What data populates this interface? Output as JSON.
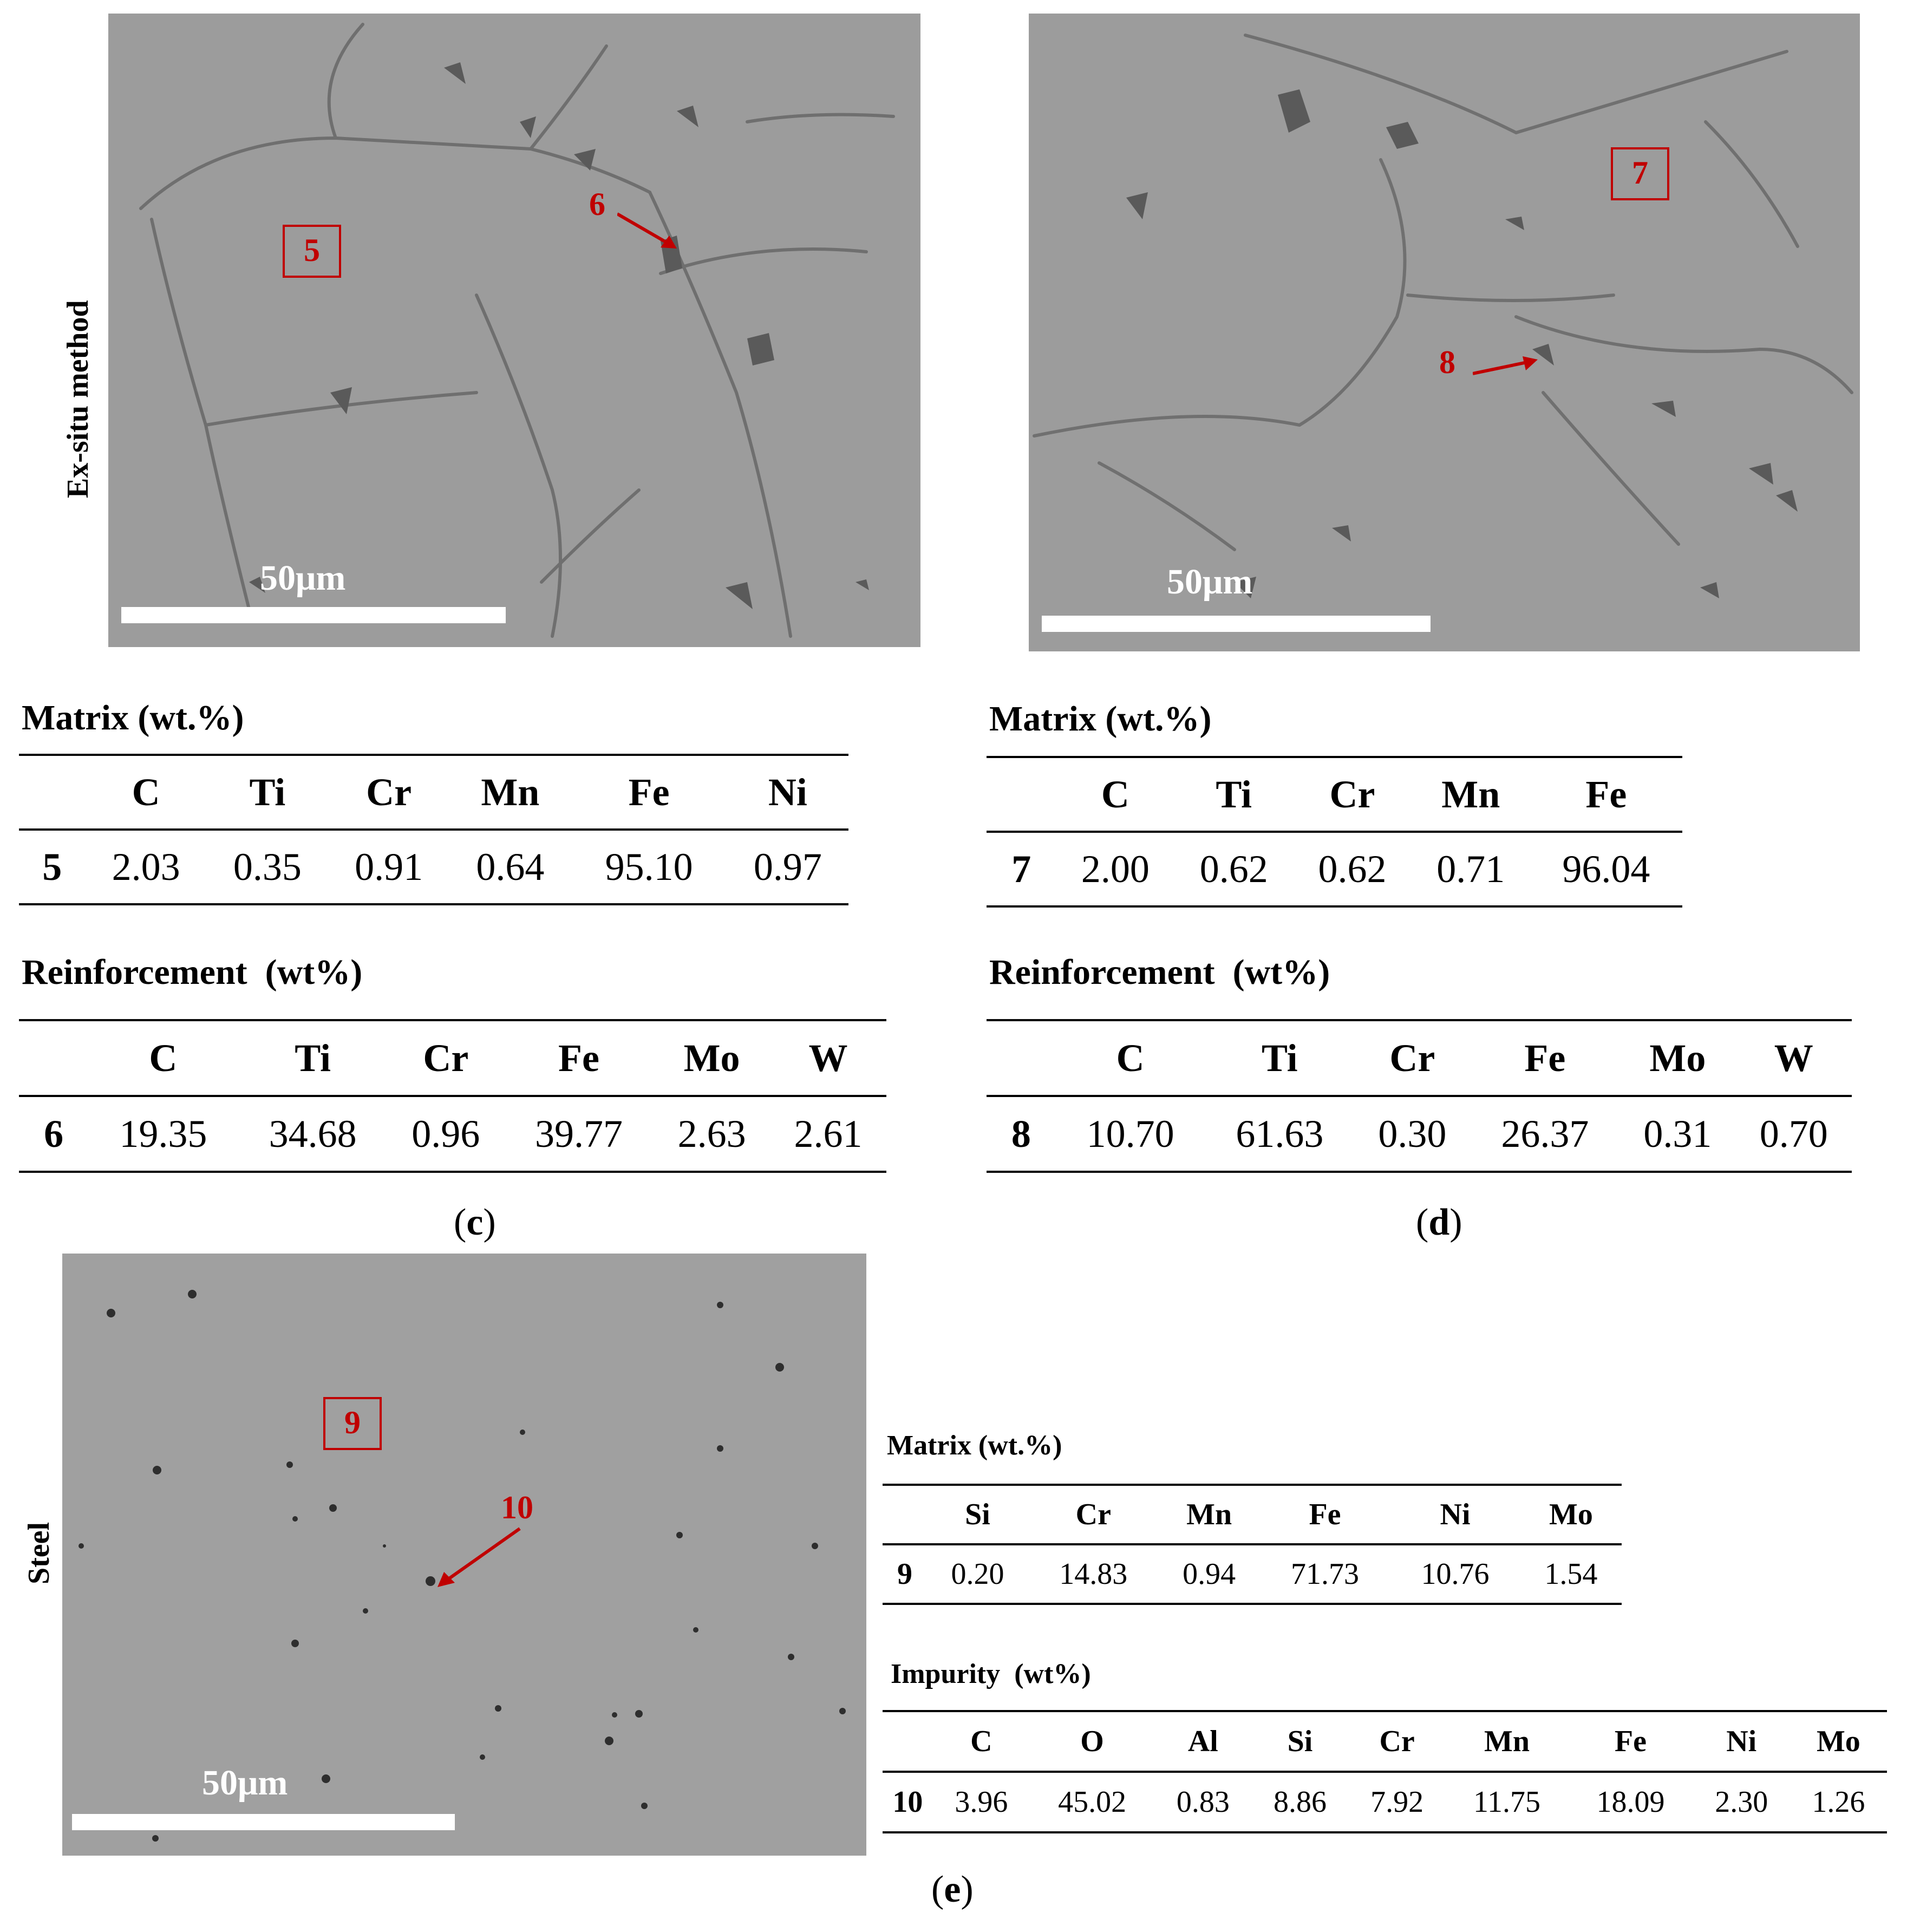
{
  "panels": {
    "c": {
      "caption_open": "(",
      "caption_letter": "c",
      "caption_close": ")",
      "side_label": "Ex-situ method",
      "scale_label": "50μm",
      "region_label": "5",
      "point_label": "6",
      "matrix": {
        "title": "Matrix (wt.%)",
        "headers": [
          "",
          "C",
          "Ti",
          "Cr",
          "Mn",
          "Fe",
          "Ni"
        ],
        "rows": [
          [
            "5",
            "2.03",
            "0.35",
            "0.91",
            "0.64",
            "95.10",
            "0.97"
          ]
        ]
      },
      "reinforcement": {
        "title": "Reinforcement  (wt%)",
        "headers": [
          "",
          "C",
          "Ti",
          "Cr",
          "Fe",
          "Mo",
          "W"
        ],
        "rows": [
          [
            "6",
            "19.35",
            "34.68",
            "0.96",
            "39.77",
            "2.63",
            "2.61"
          ]
        ]
      }
    },
    "d": {
      "caption_open": "(",
      "caption_letter": "d",
      "caption_close": ")",
      "scale_label": "50μm",
      "region_label": "7",
      "point_label": "8",
      "matrix": {
        "title": "Matrix (wt.%)",
        "headers": [
          "",
          "C",
          "Ti",
          "Cr",
          "Mn",
          "Fe"
        ],
        "rows": [
          [
            "7",
            "2.00",
            "0.62",
            "0.62",
            "0.71",
            "96.04"
          ]
        ]
      },
      "reinforcement": {
        "title": "Reinforcement  (wt%)",
        "headers": [
          "",
          "C",
          "Ti",
          "Cr",
          "Fe",
          "Mo",
          "W"
        ],
        "rows": [
          [
            "8",
            "10.70",
            "61.63",
            "0.30",
            "26.37",
            "0.31",
            "0.70"
          ]
        ]
      }
    },
    "e": {
      "caption_open": "(",
      "caption_letter": "e",
      "caption_close": ")",
      "side_label": "Steel",
      "scale_label": "50μm",
      "region_label": "9",
      "point_label": "10",
      "matrix": {
        "title": "Matrix (wt.%)",
        "headers": [
          "",
          "Si",
          "Cr",
          "Mn",
          "Fe",
          "Ni",
          "Mo"
        ],
        "rows": [
          [
            "9",
            "0.20",
            "14.83",
            "0.94",
            "71.73",
            "10.76",
            "1.54"
          ]
        ]
      },
      "impurity": {
        "title": "Impurity  (wt%)",
        "headers": [
          "",
          "C",
          "O",
          "Al",
          "Si",
          "Cr",
          "Mn",
          "Fe",
          "Ni",
          "Mo"
        ],
        "rows": [
          [
            "10",
            "3.96",
            "45.02",
            "0.83",
            "8.86",
            "7.92",
            "11.75",
            "18.09",
            "2.30",
            "1.26"
          ]
        ]
      }
    }
  },
  "colors": {
    "annotation_red": "#c00000",
    "sem_gray": "#9c9c9c"
  }
}
